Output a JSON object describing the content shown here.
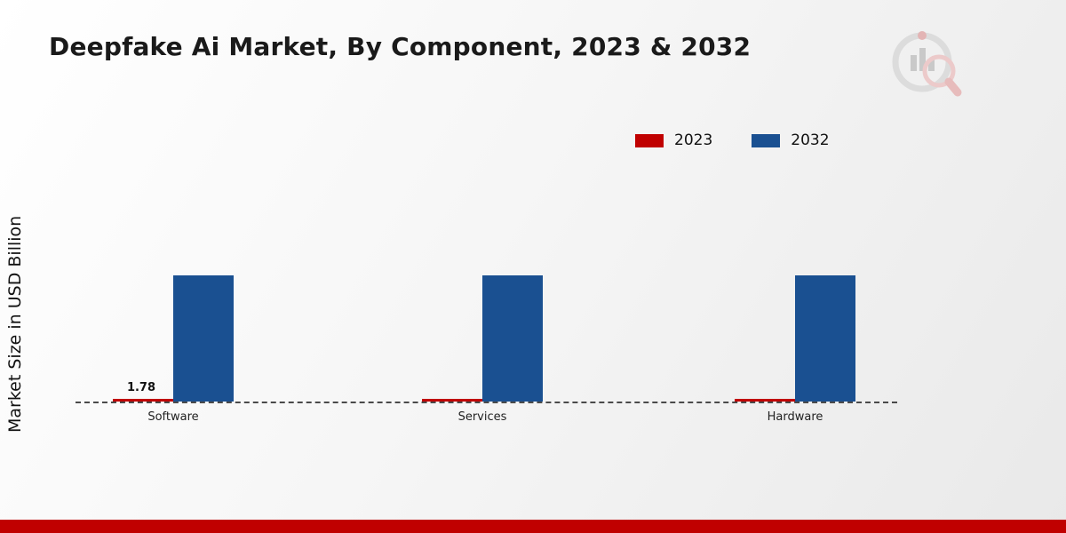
{
  "colors": {
    "accent_red": "#c00000",
    "accent_blue": "#1a5091",
    "footer": "#c00000",
    "baseline": "#4a4a4a"
  },
  "chart_data": {
    "type": "bar",
    "title": "Deepfake Ai Market, By Component, 2023 & 2032",
    "ylabel": "Market Size in USD Billion",
    "xlabel": "",
    "categories": [
      "Software",
      "Services",
      "Hardware"
    ],
    "series": [
      {
        "name": "2023",
        "color": "#c00000",
        "values": [
          1.78,
          1.6,
          1.7
        ]
      },
      {
        "name": "2032",
        "color": "#1a5091",
        "values": [
          85,
          85,
          85
        ]
      }
    ],
    "ylim": [
      0,
      90
    ],
    "grid": false,
    "legend_position": "top-right",
    "baseline_style": "dashed",
    "annotations": [
      {
        "series": "2023",
        "category": "Software",
        "text": "1.78",
        "value": 1.78
      }
    ]
  }
}
